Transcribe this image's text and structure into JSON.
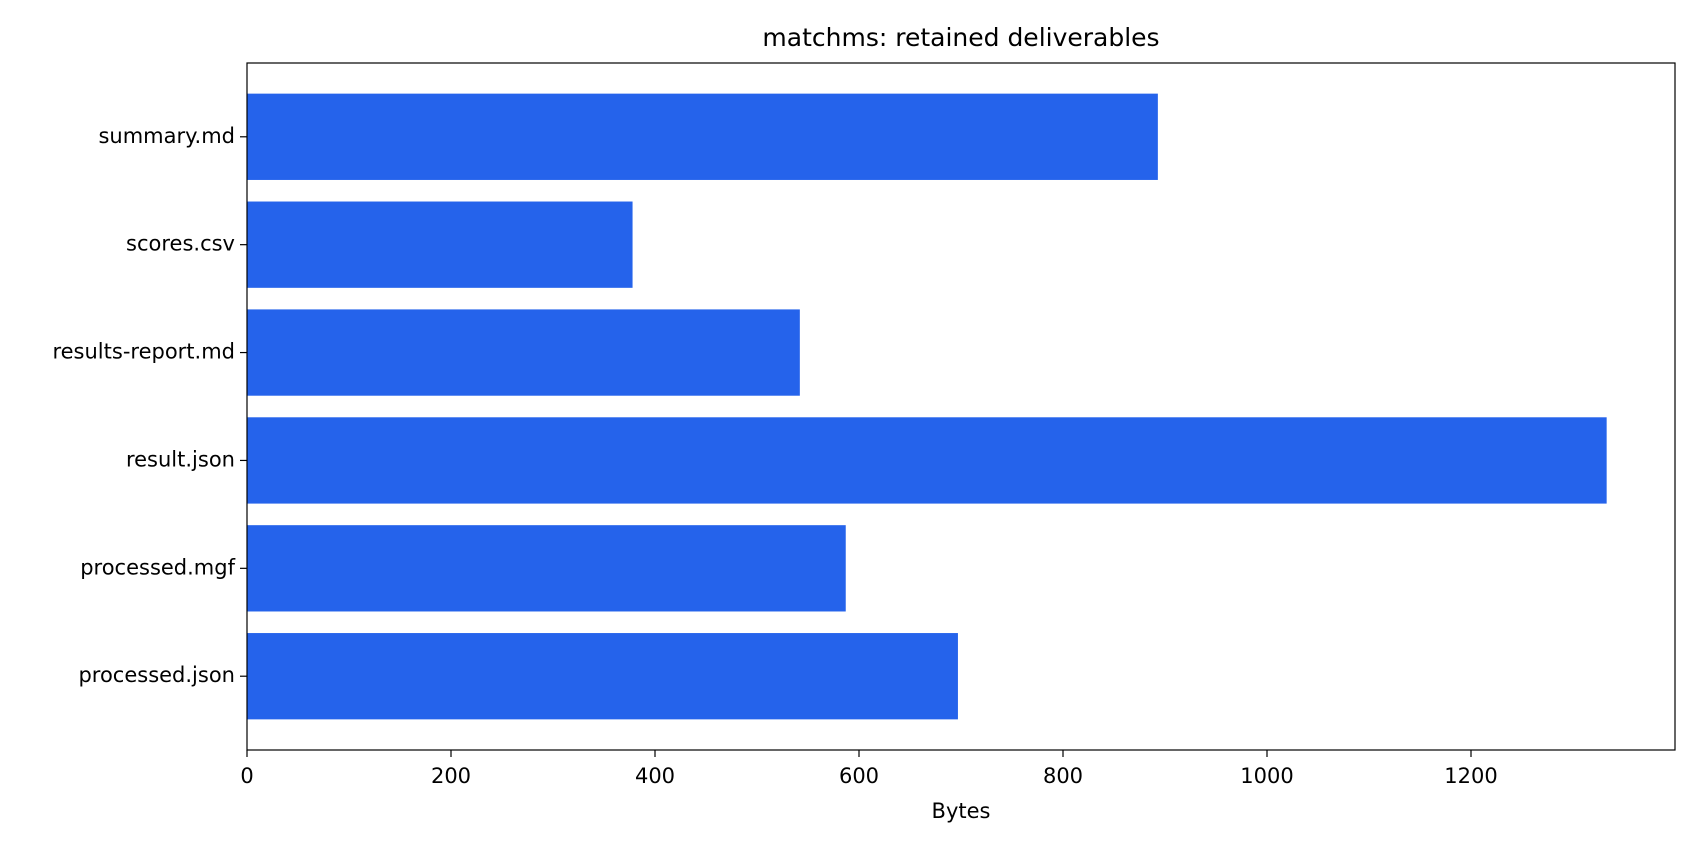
{
  "chart_data": {
    "type": "barh",
    "title": "matchms: retained deliverables",
    "xlabel": "Bytes",
    "categories": [
      "processed.json",
      "processed.mgf",
      "result.json",
      "results-report.md",
      "scores.csv",
      "summary.md"
    ],
    "values": [
      697,
      587,
      1333,
      542,
      378,
      893
    ],
    "color": "#2563eb",
    "xlim": [
      0,
      1400
    ],
    "xticks": [
      0,
      200,
      400,
      600,
      800,
      1000,
      1200
    ],
    "grid": false
  }
}
